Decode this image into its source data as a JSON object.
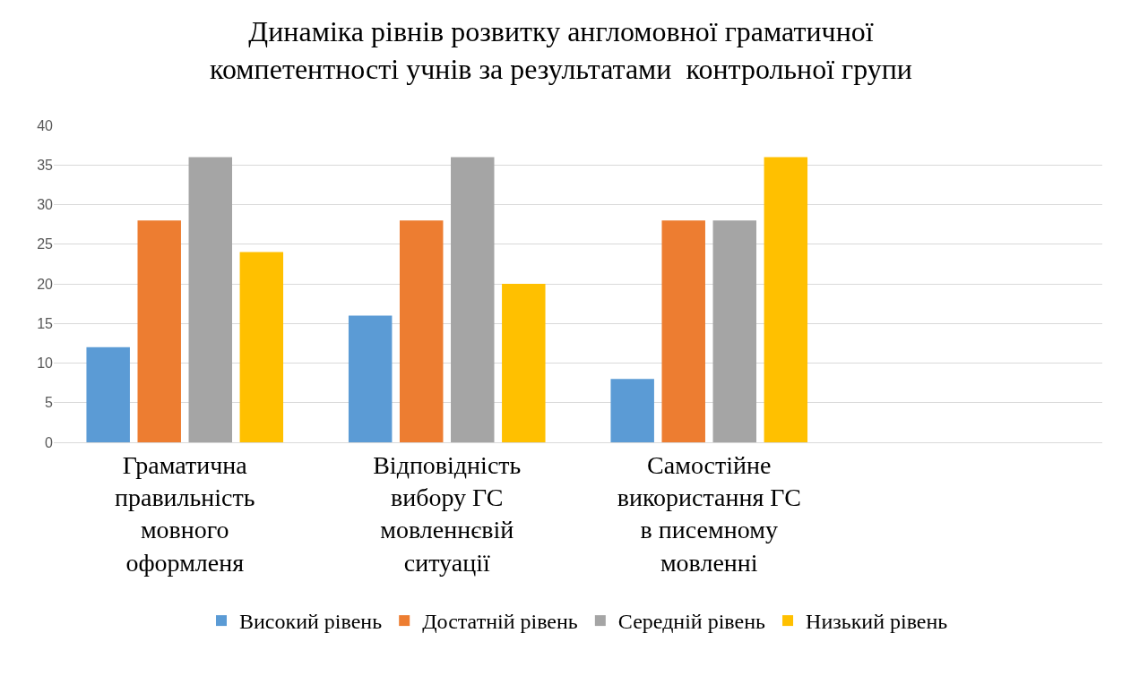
{
  "chart_data": {
    "type": "bar",
    "title": "Динаміка рівнів розвитку англомовної граматичної компетентності учнів за результатами  контрольної групи",
    "categories": [
      "Граматична правильність мовного оформленя",
      "Відповідність вибору ГС мовленнєвій ситуації",
      "Самостійне використання ГС в писемному мовленні",
      null
    ],
    "series": [
      {
        "name": "Високий рівень",
        "color": "#5b9bd5",
        "values": [
          12,
          16,
          8,
          null
        ]
      },
      {
        "name": "Достатній рівень",
        "color": "#ed7d31",
        "values": [
          28,
          28,
          28,
          null
        ]
      },
      {
        "name": "Середній рівень",
        "color": "#a5a5a5",
        "values": [
          36,
          36,
          28,
          null
        ]
      },
      {
        "name": "Низький рівень",
        "color": "#ffc000",
        "values": [
          24,
          20,
          36,
          null
        ]
      }
    ],
    "ylim": [
      0,
      40
    ],
    "yticks": [
      0,
      5,
      10,
      15,
      20,
      25,
      30,
      35,
      40
    ],
    "grid": "y",
    "legend": "bottom"
  }
}
